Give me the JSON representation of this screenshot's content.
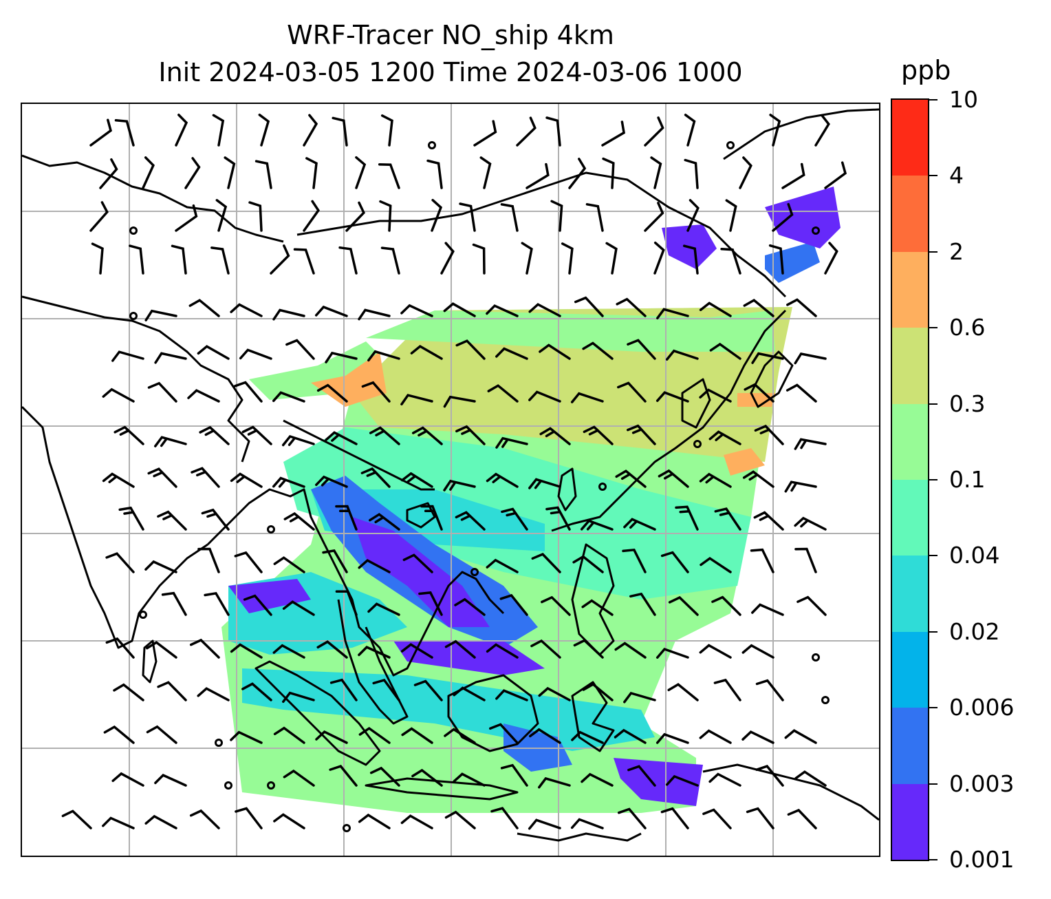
{
  "map": {
    "title_line1": "WRF-Tracer NO_ship 4km",
    "title_line2": "Init 2024-03-05 1200 Time 2024-03-06 1000",
    "field": "NO_ship",
    "grid_lines": true,
    "features": [
      "coastlines",
      "country-borders",
      "wind-barbs",
      "gridlines"
    ],
    "colors": {
      "coast": "#000000",
      "grid": "#b0b0b0",
      "barb": "#000000",
      "background": "#ffffff"
    }
  },
  "colorbar": {
    "unit": "ppb",
    "levels": [
      "0.001",
      "0.003",
      "0.006",
      "0.02",
      "0.04",
      "0.1",
      "0.3",
      "0.6",
      "2",
      "4",
      "10"
    ],
    "colors": [
      "#6629fa",
      "#3273f2",
      "#03b3ea",
      "#2fdcd7",
      "#62f9b9",
      "#97fb96",
      "#cce275",
      "#feaf5e",
      "#fe6d39",
      "#fe2b17"
    ]
  }
}
